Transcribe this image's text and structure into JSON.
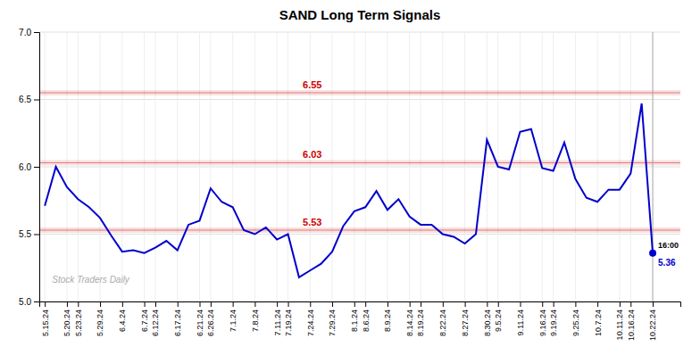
{
  "chart_data": {
    "type": "line",
    "title": "SAND Long Term Signals",
    "categories": [
      "5.15.24",
      null,
      "5.20.24",
      "5.23.24",
      null,
      "5.29.24",
      null,
      "6.4.24",
      null,
      "6.7.24",
      "6.12.24",
      null,
      "6.17.24",
      null,
      "6.21.24",
      "6.26.24",
      null,
      "7.1.24",
      null,
      "7.8.24",
      null,
      "7.11.24",
      "7.19.24",
      null,
      "7.24.24",
      null,
      "7.29.24",
      null,
      "8.1.24",
      "8.6.24",
      null,
      "8.9.24",
      null,
      "8.14.24",
      "8.19.24",
      null,
      "8.22.24",
      null,
      "8.27.24",
      null,
      "8.30.24",
      "9.5.24",
      null,
      "9.11.24",
      null,
      "9.16.24",
      "9.19.24",
      null,
      "9.25.24",
      null,
      "10.7.24",
      null,
      "10.11.24",
      "10.16.24",
      null,
      "10.22.24"
    ],
    "values": [
      5.71,
      6.0,
      5.85,
      5.76,
      5.7,
      5.62,
      5.49,
      5.37,
      5.38,
      5.36,
      5.4,
      5.45,
      5.38,
      5.57,
      5.6,
      5.84,
      5.74,
      5.7,
      5.53,
      5.5,
      5.55,
      5.46,
      5.5,
      5.18,
      5.23,
      5.28,
      5.37,
      5.56,
      5.67,
      5.7,
      5.82,
      5.68,
      5.76,
      5.63,
      5.57,
      5.57,
      5.5,
      5.48,
      5.43,
      5.5,
      6.2,
      6.0,
      5.98,
      6.26,
      6.28,
      5.99,
      5.97,
      6.18,
      5.91,
      5.77,
      5.74,
      5.83,
      5.83,
      5.95,
      6.47,
      5.36
    ],
    "color": "#0000cc",
    "ylim": [
      5.0,
      7.0
    ],
    "yticks": [
      {
        "value": 5.0,
        "label": "5.0"
      },
      5.5,
      {
        "value": 6.0,
        "label": "6.0"
      },
      6.5,
      {
        "value": 7.0,
        "label": "7.0"
      }
    ],
    "grid": true,
    "reference_lines": [
      {
        "value": 6.55,
        "label": "6.55",
        "color": "#cc0000"
      },
      {
        "value": 6.03,
        "label": "6.03",
        "color": "#cc0000"
      },
      {
        "value": 5.53,
        "label": "5.53",
        "color": "#cc0000"
      }
    ],
    "annotations": [
      "Stock Traders Daily",
      "16:00",
      "5.36"
    ]
  }
}
